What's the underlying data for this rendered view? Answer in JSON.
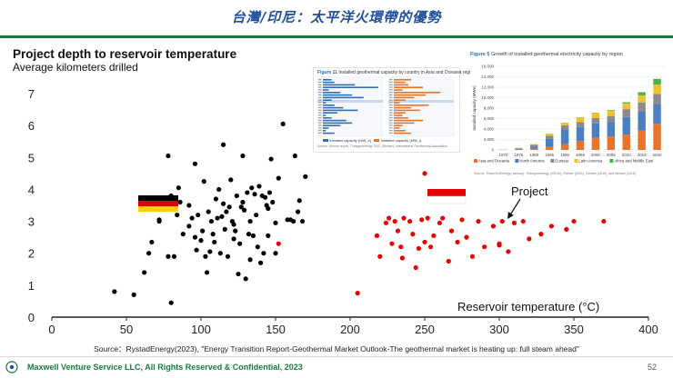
{
  "slide": {
    "title": "台灣/印尼：太平洋火環帶的優勢",
    "source": "Source：RystadEnergy(2023), \"Energy Transition Report-Geothermal Market Outlook-The geothermal market is heating up: full steam ahead\"",
    "footer": "Maxwell Venture Service LLC, All Rights Reserved & Confidential, 2023",
    "page_number": "52"
  },
  "colors": {
    "title": "#1f4e9c",
    "green": "#1a7a3c",
    "black_series": "#000000",
    "red_series": "#e60000"
  },
  "flags": {
    "germany": "germany-flag",
    "indonesia": "indonesia-flag"
  },
  "chart_data": {
    "type": "scatter",
    "title": "Project depth to reservoir temperature",
    "subtitle": "Average kilometers drilled",
    "xlabel": "Reservoir temperature (°C)",
    "ylabel": "",
    "xlim": [
      0,
      400
    ],
    "ylim": [
      0,
      7
    ],
    "xticks": [
      0,
      50,
      100,
      150,
      200,
      250,
      300,
      350,
      400
    ],
    "yticks": [
      0,
      1,
      2,
      3,
      4,
      5,
      6,
      7
    ],
    "annotation": "Project",
    "series": [
      {
        "name": "Germany",
        "color": "#000000",
        "points": [
          [
            42,
            0.8
          ],
          [
            55,
            0.7
          ],
          [
            80,
            0.45
          ],
          [
            62,
            1.4
          ],
          [
            65,
            2.0
          ],
          [
            67,
            2.35
          ],
          [
            72,
            3.05
          ],
          [
            78,
            1.9
          ],
          [
            80,
            3.8
          ],
          [
            82,
            1.9
          ],
          [
            78,
            5.05
          ],
          [
            84,
            3.2
          ],
          [
            85,
            4.05
          ],
          [
            86,
            3.6
          ],
          [
            88,
            2.6
          ],
          [
            92,
            2.85
          ],
          [
            94,
            3.1
          ],
          [
            96,
            2.5
          ],
          [
            97,
            2.1
          ],
          [
            98,
            3.2
          ],
          [
            100,
            2.4
          ],
          [
            101,
            2.7
          ],
          [
            103,
            1.9
          ],
          [
            104,
            1.4
          ],
          [
            105,
            3.3
          ],
          [
            106,
            2.05
          ],
          [
            107,
            3.0
          ],
          [
            108,
            2.6
          ],
          [
            109,
            2.35
          ],
          [
            110,
            3.7
          ],
          [
            111,
            3.1
          ],
          [
            112,
            4.0
          ],
          [
            113,
            2.0
          ],
          [
            114,
            3.15
          ],
          [
            115,
            5.4
          ],
          [
            116,
            2.75
          ],
          [
            117,
            3.3
          ],
          [
            118,
            1.9
          ],
          [
            119,
            3.45
          ],
          [
            120,
            4.3
          ],
          [
            121,
            3.0
          ],
          [
            122,
            2.45
          ],
          [
            123,
            2.7
          ],
          [
            124,
            3.8
          ],
          [
            125,
            1.35
          ],
          [
            126,
            2.3
          ],
          [
            127,
            3.45
          ],
          [
            128,
            3.6
          ],
          [
            129,
            3.35
          ],
          [
            130,
            1.2
          ],
          [
            131,
            3.9
          ],
          [
            132,
            2.6
          ],
          [
            133,
            3.0
          ],
          [
            134,
            4.05
          ],
          [
            135,
            2.55
          ],
          [
            136,
            3.85
          ],
          [
            137,
            3.2
          ],
          [
            138,
            2.2
          ],
          [
            139,
            4.1
          ],
          [
            140,
            1.7
          ],
          [
            141,
            3.8
          ],
          [
            142,
            2.0
          ],
          [
            143,
            3.75
          ],
          [
            144,
            3.5
          ],
          [
            145,
            3.4
          ],
          [
            146,
            3.9
          ],
          [
            147,
            4.95
          ],
          [
            148,
            3.6
          ],
          [
            150,
            2.95
          ],
          [
            152,
            4.35
          ],
          [
            155,
            6.05
          ],
          [
            158,
            3.05
          ],
          [
            160,
            3.05
          ],
          [
            162,
            3.0
          ],
          [
            163,
            5.05
          ],
          [
            165,
            3.3
          ],
          [
            166,
            3.65
          ],
          [
            168,
            3.0
          ],
          [
            170,
            4.4
          ],
          [
            128,
            5.05
          ],
          [
            96,
            4.8
          ],
          [
            72,
            3.0
          ],
          [
            115,
            3.55
          ],
          [
            133,
            1.8
          ],
          [
            150,
            2.0
          ],
          [
            145,
            2.55
          ],
          [
            122,
            2.9
          ],
          [
            92,
            3.5
          ],
          [
            102,
            4.25
          ]
        ]
      },
      {
        "name": "Indonesia",
        "color": "#e60000",
        "points": [
          [
            152,
            2.3
          ],
          [
            205,
            0.75
          ],
          [
            218,
            2.55
          ],
          [
            220,
            1.9
          ],
          [
            224,
            2.95
          ],
          [
            226,
            3.1
          ],
          [
            228,
            2.3
          ],
          [
            230,
            3.0
          ],
          [
            232,
            2.7
          ],
          [
            234,
            2.2
          ],
          [
            235,
            1.85
          ],
          [
            236,
            3.1
          ],
          [
            240,
            3.0
          ],
          [
            242,
            2.6
          ],
          [
            244,
            1.55
          ],
          [
            246,
            2.15
          ],
          [
            248,
            3.05
          ],
          [
            250,
            2.35
          ],
          [
            252,
            3.1
          ],
          [
            254,
            2.2
          ],
          [
            256,
            2.55
          ],
          [
            260,
            2.95
          ],
          [
            262,
            3.1
          ],
          [
            266,
            1.75
          ],
          [
            268,
            2.7
          ],
          [
            272,
            2.35
          ],
          [
            275,
            3.05
          ],
          [
            278,
            2.5
          ],
          [
            282,
            1.9
          ],
          [
            286,
            3.0
          ],
          [
            290,
            2.2
          ],
          [
            296,
            2.85
          ],
          [
            300,
            2.3
          ],
          [
            302,
            3.0
          ],
          [
            306,
            2.05
          ],
          [
            310,
            2.95
          ],
          [
            316,
            3.0
          ],
          [
            320,
            2.45
          ],
          [
            328,
            2.6
          ],
          [
            335,
            2.85
          ],
          [
            345,
            2.75
          ],
          [
            350,
            3.0
          ],
          [
            370,
            3.0
          ],
          [
            250,
            4.5
          ],
          [
            300,
            2.25
          ]
        ]
      }
    ]
  },
  "inset_left": {
    "fig_label": "Figure 11",
    "caption": "Installed geothermal capacity by country in Asia and Oceania region – 2021",
    "legend_a": "Installed capacity (MW_e)",
    "legend_b": "Installed capacity (MW_t)",
    "source": "Source: Annual report, Thinkgeoenergy 2021 (Richter), International Geothermal Association"
  },
  "inset_right": {
    "fig_label": "Figure 5",
    "caption": "Growth of installed geothermal electricity capacity by region",
    "ylabel": "Installed capacity (MWe)",
    "years": [
      "1970",
      "1975",
      "1980",
      "1985",
      "1990",
      "1995",
      "2000",
      "2005",
      "2010",
      "2015",
      "2020"
    ],
    "yticks": [
      "0",
      "2,000",
      "4,000",
      "6,000",
      "8,000",
      "10,000",
      "12,000",
      "14,000",
      "16,000"
    ],
    "regions": [
      "Asia and Oceania",
      "North America",
      "Eurasia",
      "Latin America",
      "Africa and Middle East"
    ],
    "region_colors": [
      "#e8732a",
      "#4a7fc4",
      "#8a8a8a",
      "#f2c12e",
      "#4caf50"
    ],
    "stacks": [
      [
        0,
        50,
        0,
        10,
        0
      ],
      [
        20,
        150,
        130,
        80,
        0
      ],
      [
        220,
        380,
        400,
        120,
        0
      ],
      [
        600,
        1500,
        600,
        400,
        30
      ],
      [
        1100,
        2800,
        800,
        450,
        50
      ],
      [
        1700,
        2700,
        900,
        900,
        50
      ],
      [
        2300,
        2800,
        1000,
        950,
        60
      ],
      [
        2600,
        2700,
        1200,
        1000,
        130
      ],
      [
        2900,
        3400,
        1500,
        1100,
        220
      ],
      [
        3700,
        3700,
        1700,
        1350,
        600
      ],
      [
        5000,
        3800,
        1900,
        1800,
        1100
      ]
    ],
    "source": "Source: ThinkGeoEnergy (various), Thinkgeoenergy (2021b), Richter (2021), Gehrke (2010), and Bertani (2015)"
  }
}
